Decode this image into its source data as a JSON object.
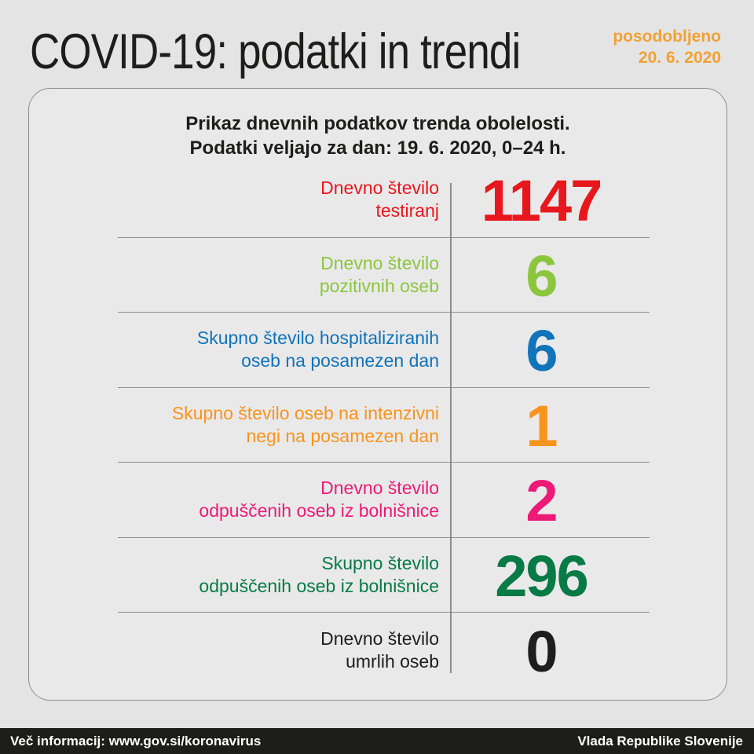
{
  "header": {
    "title": "COVID-19: podatki in trendi",
    "updated_label": "posodobljeno",
    "updated_date": "20. 6. 2020",
    "accent_color": "#f2a133"
  },
  "card": {
    "intro_line1": "Prikaz dnevnih podatkov trenda obolelosti.",
    "intro_line2": "Podatki veljajo za dan: 19. 6. 2020, 0–24 h.",
    "rows": [
      {
        "label_line1": "Dnevno število",
        "label_line2": "testiranj",
        "value": "1147",
        "color": "#e8161d"
      },
      {
        "label_line1": "Dnevno število",
        "label_line2": "pozitivnih oseb",
        "value": "6",
        "color": "#8cc63f"
      },
      {
        "label_line1": "Skupno število hospitaliziranih",
        "label_line2": "oseb na posamezen dan",
        "value": "6",
        "color": "#1173ba"
      },
      {
        "label_line1": "Skupno število oseb na intenzivni",
        "label_line2": "negi na posamezen dan",
        "value": "1",
        "color": "#f7941e"
      },
      {
        "label_line1": "Dnevno število",
        "label_line2": "odpuščenih oseb iz bolnišnice",
        "value": "2",
        "color": "#ec1a76"
      },
      {
        "label_line1": "Skupno število",
        "label_line2": "odpuščenih oseb iz bolnišnice",
        "value": "296",
        "color": "#077a46"
      },
      {
        "label_line1": "Dnevno število",
        "label_line2": "umrlih oseb",
        "value": "0",
        "color": "#1d1d1b"
      }
    ]
  },
  "footer": {
    "more_info": "Več informacij: www.gov.si/koronavirus",
    "government": "Vlada Republike Slovenije"
  }
}
